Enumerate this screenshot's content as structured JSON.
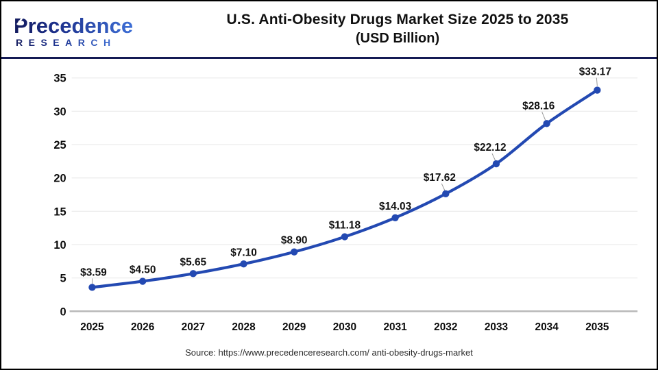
{
  "header": {
    "logo": {
      "line1": "Precedence",
      "line2": "RESEARCH",
      "color_start": "#131b5e",
      "color_end": "#3e6fd6"
    },
    "title_line1": "U.S. Anti-Obesity Drugs Market Size 2025 to 2035",
    "title_line2": "(USD Billion)"
  },
  "footer": {
    "source": "Source: https://www.precedenceresearch.com/ anti-obesity-drugs-market"
  },
  "colors": {
    "line": "#2349b2",
    "marker": "#2349b2",
    "divider_navy": "#141a54",
    "grid": "#ececec",
    "axis": "#b9b9b9",
    "tick_label": "#0c0c0c",
    "data_label": "#111111",
    "leader": "#999999"
  },
  "chart_data": {
    "type": "line",
    "title": "U.S. Anti-Obesity Drugs Market Size 2025 to 2035 (USD Billion)",
    "categories": [
      "2025",
      "2026",
      "2027",
      "2028",
      "2029",
      "2030",
      "2031",
      "2032",
      "2033",
      "2034",
      "2035"
    ],
    "values": [
      3.59,
      4.5,
      5.65,
      7.1,
      8.9,
      11.18,
      14.03,
      17.62,
      22.12,
      28.16,
      33.17
    ],
    "value_prefix": "$",
    "ylabel": "",
    "xlabel": "",
    "ylim": [
      0,
      35
    ],
    "ytick_step": 5,
    "yticks": [
      0,
      5,
      10,
      15,
      20,
      25,
      30,
      35
    ],
    "grid": true,
    "legend": false
  }
}
